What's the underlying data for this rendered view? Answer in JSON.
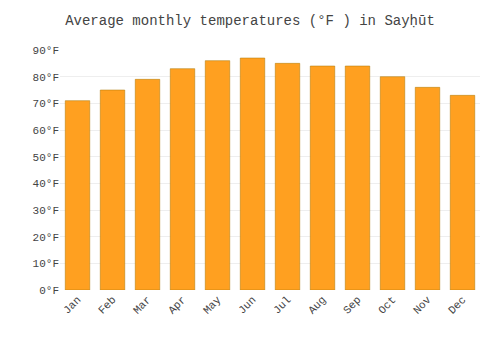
{
  "chart_data": {
    "type": "bar",
    "title": "Average monthly temperatures (°F ) in Sayḥūt",
    "categories": [
      "Jan",
      "Feb",
      "Mar",
      "Apr",
      "May",
      "Jun",
      "Jul",
      "Aug",
      "Sep",
      "Oct",
      "Nov",
      "Dec"
    ],
    "values": [
      71,
      75,
      79,
      83,
      86,
      87,
      85,
      84,
      84,
      80,
      76,
      73
    ],
    "color": "#FFA020",
    "ylim": [
      0,
      90
    ],
    "yticks": [
      {
        "value": 0,
        "label": "0°F"
      },
      {
        "value": 10,
        "label": "10°F"
      },
      {
        "value": 20,
        "label": "20°F"
      },
      {
        "value": 30,
        "label": "30°F"
      },
      {
        "value": 40,
        "label": "40°F"
      },
      {
        "value": 50,
        "label": "50°F"
      },
      {
        "value": 60,
        "label": "60°F"
      },
      {
        "value": 70,
        "label": "70°F"
      },
      {
        "value": 80,
        "label": "80°F"
      },
      {
        "value": 90,
        "label": "90°F"
      }
    ],
    "grid": true
  }
}
